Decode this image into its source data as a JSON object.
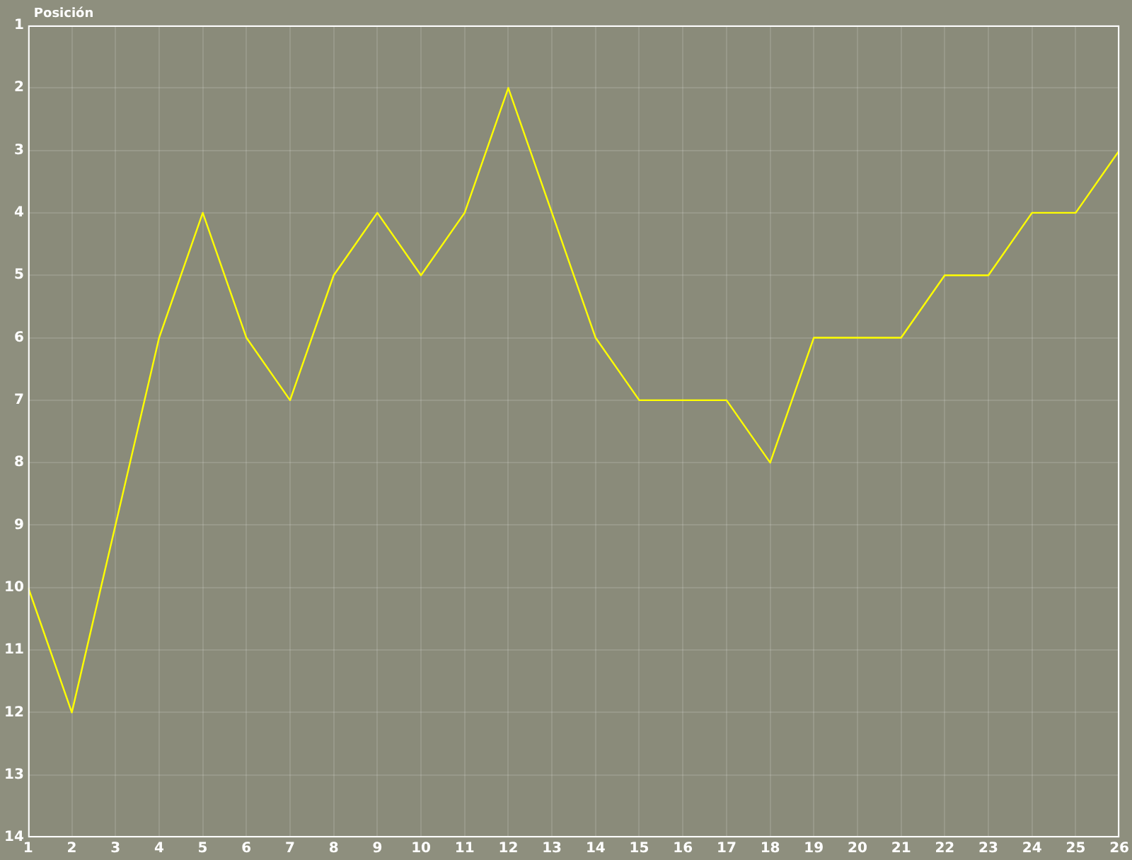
{
  "chart_data": {
    "type": "line",
    "ylabel": "Posición",
    "x": [
      1,
      2,
      3,
      4,
      5,
      6,
      7,
      8,
      9,
      10,
      11,
      12,
      13,
      14,
      15,
      16,
      17,
      18,
      19,
      20,
      21,
      22,
      23,
      24,
      25,
      26
    ],
    "series": [
      {
        "color": "#ffff00",
        "values": [
          10,
          12,
          9,
          6,
          4,
          6,
          7,
          5,
          4,
          5,
          4,
          2,
          4,
          6,
          7,
          7,
          7,
          8,
          6,
          6,
          6,
          5,
          5,
          4,
          4,
          3
        ]
      }
    ],
    "xlim": [
      1,
      26
    ],
    "xticks": [
      1,
      2,
      3,
      4,
      5,
      6,
      7,
      8,
      9,
      10,
      11,
      12,
      13,
      14,
      15,
      16,
      17,
      18,
      19,
      20,
      21,
      22,
      23,
      24,
      25,
      26
    ],
    "ylim": [
      14,
      1
    ],
    "yticks": [
      1,
      2,
      3,
      4,
      5,
      6,
      7,
      8,
      9,
      10,
      11,
      12,
      13,
      14
    ],
    "grid": true,
    "marker": "none",
    "line_style": "solid",
    "legend": false
  }
}
